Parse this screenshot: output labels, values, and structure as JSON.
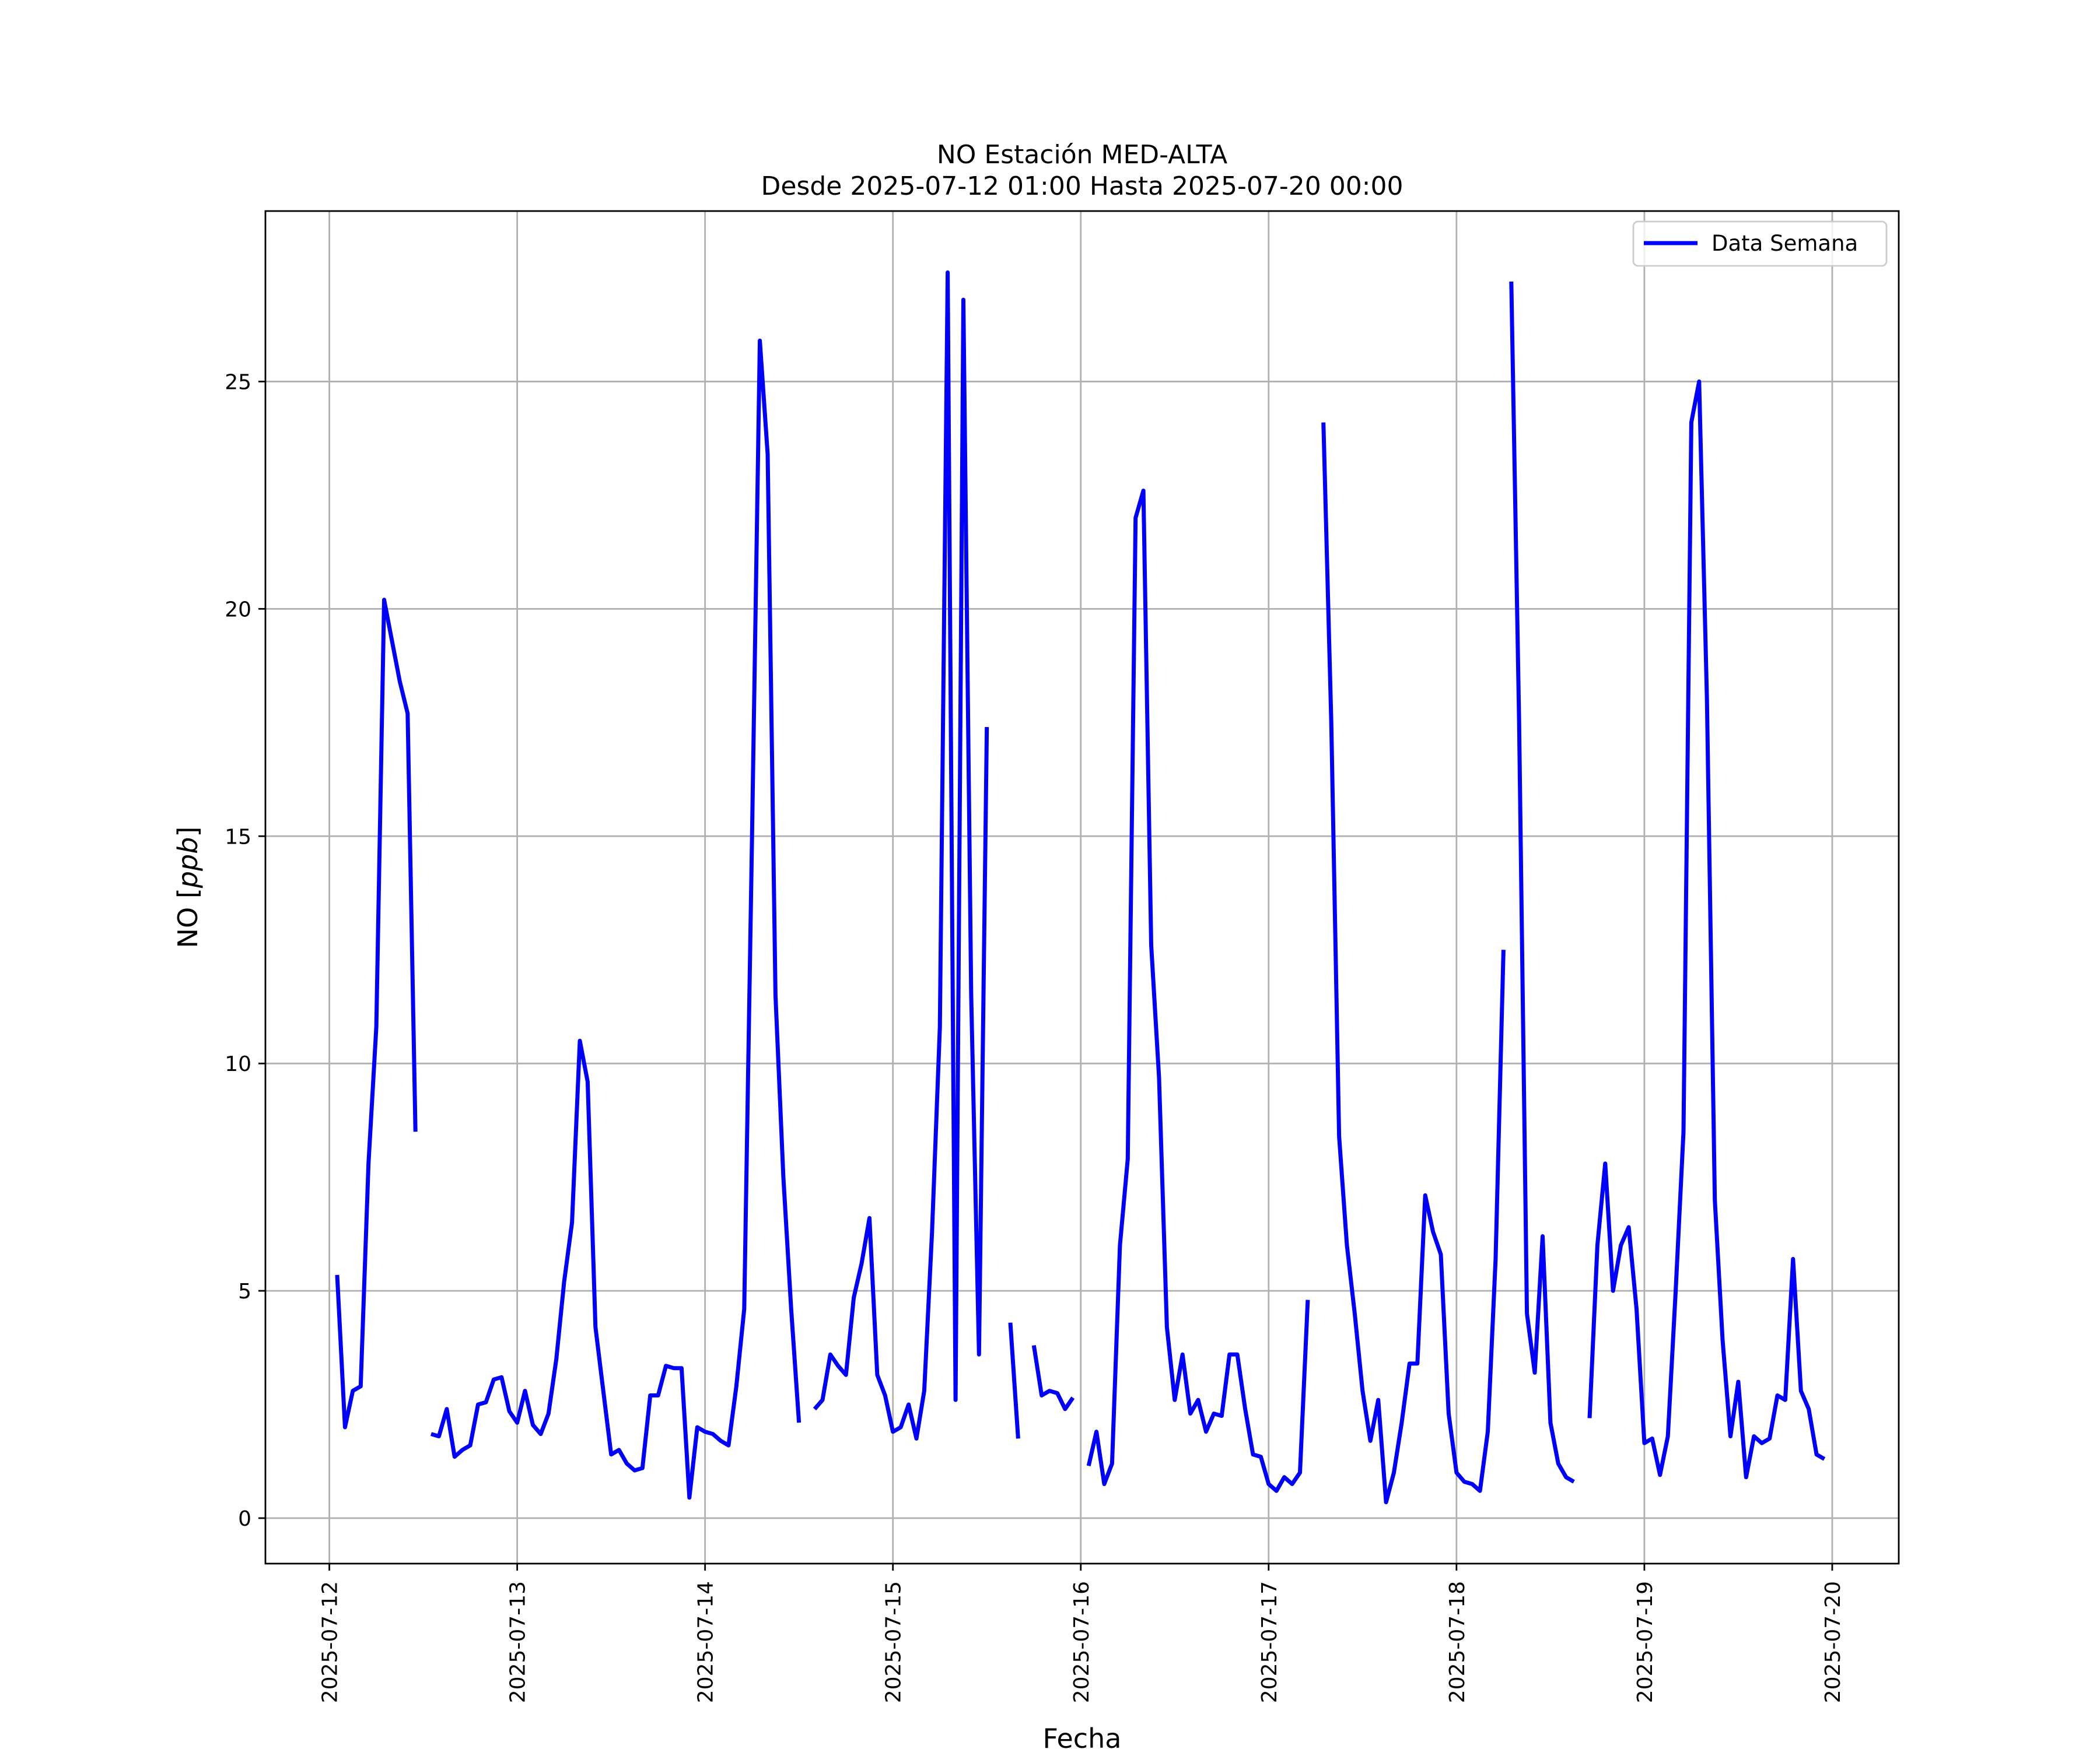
{
  "chart_data": {
    "type": "line",
    "title": "NO Estación MED-ALTA",
    "subtitle": "Desde 2025-07-12 01:00 Hasta 2025-07-20 00:00",
    "xlabel": "Fecha",
    "ylabel_prefix": "NO [",
    "ylabel_unit": "ppb",
    "ylabel_suffix": "]",
    "xlim": [
      "2025-07-11 15:50",
      "2025-07-20 08:30"
    ],
    "ylim": [
      -1.0,
      28.75
    ],
    "x_ticks": [
      "2025-07-12",
      "2025-07-13",
      "2025-07-14",
      "2025-07-15",
      "2025-07-16",
      "2025-07-17",
      "2025-07-18",
      "2025-07-19",
      "2025-07-20"
    ],
    "y_ticks": [
      0,
      5,
      10,
      15,
      20,
      25
    ],
    "y_tick_labels": [
      "0",
      "5",
      "10",
      "15",
      "20",
      "25"
    ],
    "grid": true,
    "legend_position": "top-right",
    "colors": {
      "series": "#0000ff",
      "grid": "#b0b0b0",
      "frame": "#000000"
    },
    "series": [
      {
        "name": "Data Semana",
        "segments": [
          {
            "start": "2025-07-12 01:00",
            "values": [
              5.35,
              2.0,
              2.8,
              2.9,
              7.8,
              10.8,
              20.2,
              19.3,
              18.4,
              17.7,
              8.5
            ]
          },
          {
            "start": "2025-07-12 13:00",
            "values": [
              1.85,
              1.8,
              2.4,
              1.35,
              1.5,
              1.6,
              2.5,
              2.55,
              3.05,
              3.1,
              2.35,
              2.1,
              2.8,
              2.05,
              1.85,
              2.3,
              3.5,
              5.2,
              6.5,
              10.5,
              9.6,
              4.2,
              2.8,
              1.4,
              1.5,
              1.2,
              1.05,
              1.1,
              2.7,
              2.7,
              3.35,
              3.3,
              3.3,
              0.45,
              2.0,
              1.9,
              1.85,
              1.7,
              1.6,
              2.9,
              4.6,
              15.0,
              25.9,
              23.4,
              11.5,
              7.5,
              4.6,
              2.1
            ]
          },
          {
            "start": "2025-07-14 14:00",
            "values": [
              2.4,
              2.6,
              3.6,
              3.35,
              3.15,
              4.85,
              5.6,
              6.6,
              3.15,
              2.7,
              1.9,
              2.0,
              2.5,
              1.75,
              2.8,
              6.3,
              10.8,
              27.4,
              2.6,
              26.8,
              11.5,
              3.6,
              17.4
            ]
          },
          {
            "start": "2025-07-15 15:00",
            "values": [
              4.3,
              1.75
            ]
          },
          {
            "start": "2025-07-15 18:00",
            "values": [
              3.8,
              2.7,
              2.8,
              2.75,
              2.4,
              2.65
            ]
          },
          {
            "start": "2025-07-16 01:00",
            "values": [
              1.15,
              1.9,
              0.75,
              1.2,
              6.0,
              7.9,
              22.0,
              22.6,
              12.6,
              9.7,
              4.2,
              2.6,
              3.6,
              2.3,
              2.6,
              1.9,
              2.3,
              2.25,
              3.6,
              3.6,
              2.4,
              1.4,
              1.35,
              0.75,
              0.6,
              0.9,
              0.75,
              1.0,
              4.8
            ]
          },
          {
            "start": "2025-07-17 07:00",
            "values": [
              24.1,
              17.5,
              8.4,
              6.0,
              4.5,
              2.8,
              1.7,
              2.6,
              0.35,
              1.0,
              2.1,
              3.4,
              3.4,
              7.1,
              6.3,
              5.8,
              2.3,
              1.0,
              0.8,
              0.75,
              0.6,
              1.9,
              5.7,
              12.5
            ]
          },
          {
            "start": "2025-07-18 07:00",
            "values": [
              27.2,
              17.5,
              4.5,
              3.2,
              6.2,
              2.1,
              1.2,
              0.9,
              0.8
            ]
          },
          {
            "start": "2025-07-18 17:00",
            "values": [
              2.2,
              6.0,
              7.8,
              5.0,
              6.0,
              6.4,
              4.6,
              1.65,
              1.75,
              0.95,
              1.8,
              5.0,
              8.5,
              24.1,
              25.0,
              18.0,
              7.0,
              3.9,
              1.8,
              3.0,
              0.9,
              1.8,
              1.65,
              1.75,
              2.7,
              2.6,
              5.7,
              2.8,
              2.4,
              1.4,
              1.3
            ]
          }
        ]
      }
    ]
  }
}
